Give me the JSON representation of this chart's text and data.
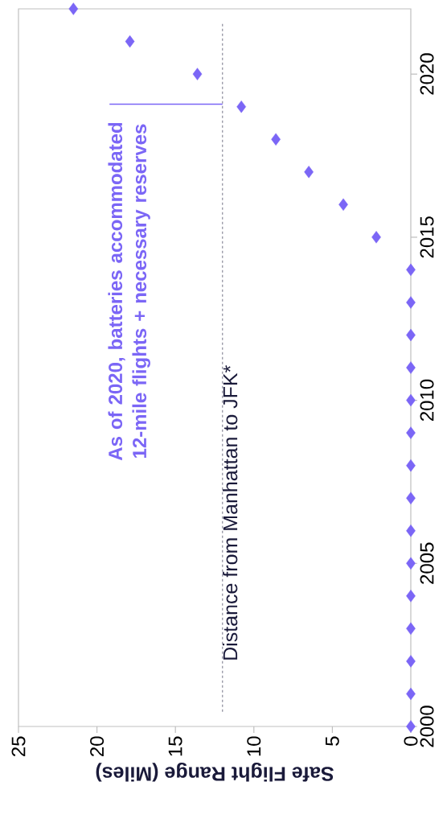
{
  "chart_data": {
    "type": "scatter",
    "x": [
      0,
      0,
      0,
      0,
      0,
      0,
      0,
      0,
      0,
      0,
      0,
      0,
      0,
      0,
      0,
      2.2,
      4.3,
      6.5,
      8.6,
      10.8,
      13.6,
      17.9,
      21.5
    ],
    "values": [
      2000,
      2001,
      2002,
      2003,
      2004,
      2005,
      2006,
      2007,
      2008,
      2009,
      2010,
      2011,
      2012,
      2013,
      2014,
      2015,
      2016,
      2017,
      2018,
      2019,
      2020,
      2021,
      2022
    ],
    "color": "#7b66f6",
    "marker": "diamond",
    "xlim": [
      25,
      0
    ],
    "ylim": [
      2000,
      2022
    ],
    "xticks": [
      0,
      5,
      10,
      15,
      20,
      25
    ],
    "yticks": [
      2000,
      2005,
      2010,
      2015,
      2020
    ],
    "xlabel": "Safe Flight Range (Miles)",
    "ref_lines": [
      {
        "axis": "x",
        "value": 12,
        "label": "Distance from Manhattan to JFK*",
        "color": "#8a8a9a",
        "line_style": "dashed"
      }
    ],
    "annotations": [
      {
        "text": "As of 2020, batteries accommodated 12-mile flights + necessary reserves",
        "x": 12,
        "y": 2019
      }
    ]
  }
}
